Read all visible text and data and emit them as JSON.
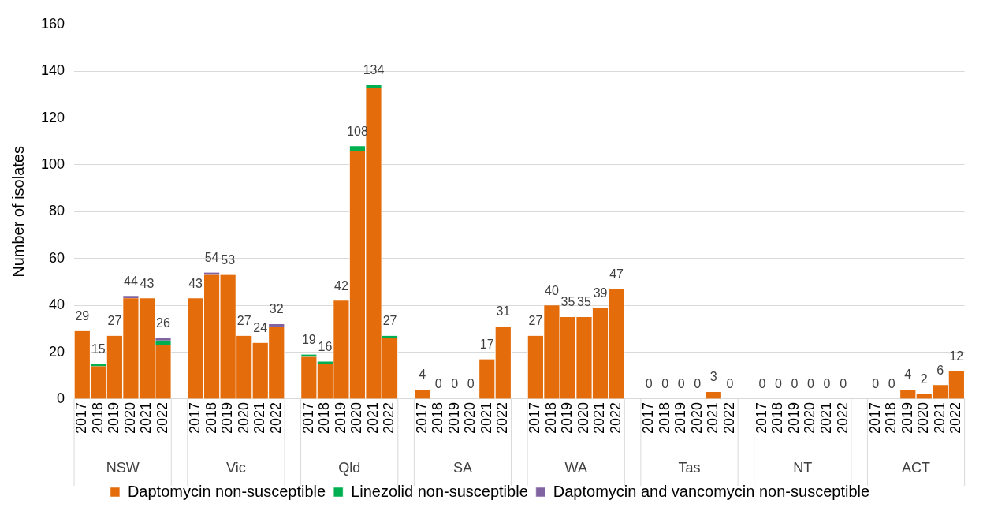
{
  "chart_data": {
    "type": "bar",
    "stacked": true,
    "ylabel": "Number of isolates",
    "categories": [
      "2017",
      "2018",
      "2019",
      "2020",
      "2021",
      "2022",
      null,
      "2017",
      "2018",
      "2019",
      "2020",
      "2021",
      "2022",
      null,
      "2017",
      "2018",
      "2019",
      "2020",
      "2021",
      "2022",
      null,
      "2017",
      "2018",
      "2019",
      "2020",
      "2021",
      "2022",
      null,
      "2017",
      "2018",
      "2019",
      "2020",
      "2021",
      "2022",
      null,
      "2017",
      "2018",
      "2019",
      "2020",
      "2021",
      "2022",
      null,
      "2017",
      "2018",
      "2019",
      "2020",
      "2021",
      "2022",
      null,
      "2017",
      "2018",
      "2019",
      "2020",
      "2021",
      "2022"
    ],
    "series": [
      {
        "name": "Daptomycin non-susceptible",
        "color": "#e46c0a",
        "values": [
          29,
          14,
          27,
          43,
          43,
          23,
          null,
          43,
          53,
          53,
          27,
          24,
          31,
          null,
          18,
          15,
          42,
          106,
          133,
          26,
          null,
          4,
          0,
          0,
          0,
          17,
          31,
          null,
          27,
          40,
          35,
          35,
          39,
          47,
          null,
          0,
          0,
          0,
          0,
          3,
          0,
          null,
          0,
          0,
          0,
          0,
          0,
          0,
          null,
          0,
          0,
          4,
          2,
          6,
          12
        ]
      },
      {
        "name": "Linezolid non-susceptible",
        "color": "#00b050",
        "values": [
          0,
          1,
          0,
          0,
          0,
          2,
          null,
          0,
          0,
          0,
          0,
          0,
          0,
          null,
          1,
          1,
          0,
          2,
          1,
          1,
          null,
          0,
          0,
          0,
          0,
          0,
          0,
          null,
          0,
          0,
          0,
          0,
          0,
          0,
          null,
          0,
          0,
          0,
          0,
          0,
          0,
          null,
          0,
          0,
          0,
          0,
          0,
          0,
          null,
          0,
          0,
          0,
          0,
          0,
          0
        ]
      },
      {
        "name": "Daptomycin and vancomycin non-susceptible",
        "color": "#8064a2",
        "values": [
          0,
          0,
          0,
          1,
          0,
          1,
          null,
          0,
          1,
          0,
          0,
          0,
          1,
          null,
          0,
          0,
          0,
          0,
          0,
          0,
          null,
          0,
          0,
          0,
          0,
          0,
          0,
          null,
          0,
          0,
          0,
          0,
          0,
          0,
          null,
          0,
          0,
          0,
          0,
          0,
          0,
          null,
          0,
          0,
          0,
          0,
          0,
          0,
          null,
          0,
          0,
          0,
          0,
          0,
          0
        ]
      }
    ],
    "totals": [
      "29",
      "15",
      "27",
      "44",
      "43",
      "26",
      null,
      "43",
      "54",
      "53",
      "27",
      "24",
      "32",
      null,
      "19",
      "16",
      "42",
      "108",
      "134",
      "27",
      null,
      "4",
      "0",
      "0",
      "0",
      "17",
      "31",
      null,
      "27",
      "40",
      "35",
      "35",
      "39",
      "47",
      null,
      "0",
      "0",
      "0",
      "0",
      "3",
      "0",
      null,
      "0",
      "0",
      "0",
      "0",
      "0",
      "0",
      null,
      "0",
      "0",
      "4",
      "2",
      "6",
      "12"
    ],
    "annotations": [
      "NSW",
      "Vic",
      "Qld",
      "SA",
      "WA",
      "Tas",
      "NT",
      "ACT"
    ],
    "ylim": [
      0,
      160
    ],
    "yticks": [
      0,
      20,
      40,
      60,
      80,
      100,
      120,
      140,
      160
    ],
    "grid": "y",
    "legend": "bottom"
  }
}
